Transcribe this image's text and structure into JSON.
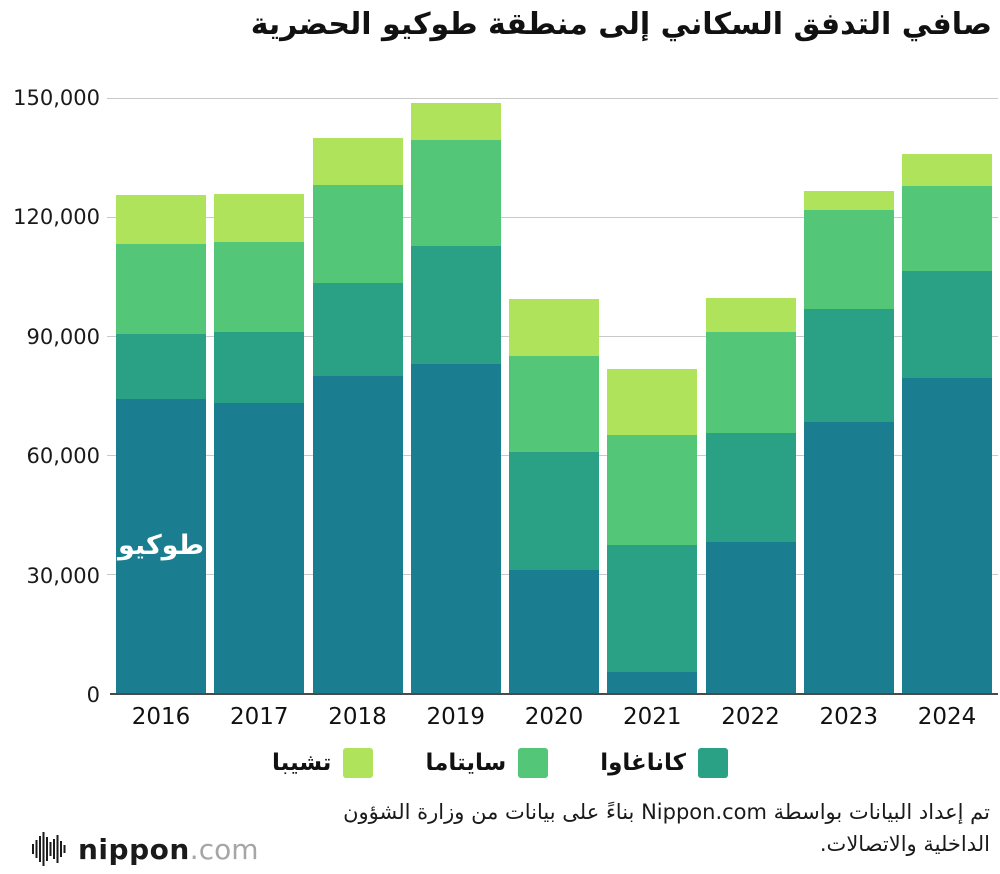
{
  "title": "صافي التدفق السكاني إلى منطقة طوكيو الحضرية",
  "colors": {
    "tokyo": "#1b7e90",
    "kanagawa": "#2aa184",
    "saitama": "#53c677",
    "chiba": "#b0e35c",
    "grid": "#c9c9c9",
    "axis": "#4a4a4a"
  },
  "chart_data": {
    "type": "bar",
    "stacked": true,
    "title": "صافي التدفق السكاني إلى منطقة طوكيو الحضرية",
    "categories": [
      "2016",
      "2017",
      "2018",
      "2019",
      "2020",
      "2021",
      "2022",
      "2023",
      "2024"
    ],
    "series": [
      {
        "name": "طوكيو",
        "color_key": "tokyo",
        "values": [
          74200,
          73100,
          79800,
          83000,
          31100,
          5400,
          38000,
          68300,
          79300
        ]
      },
      {
        "name": "كاناغاوا",
        "color_key": "kanagawa",
        "values": [
          16300,
          17900,
          23500,
          29600,
          29600,
          31800,
          27600,
          28600,
          27000
        ]
      },
      {
        "name": "سايتاما",
        "color_key": "saitama",
        "values": [
          22600,
          22800,
          24700,
          26700,
          24300,
          27800,
          25400,
          24800,
          21500
        ]
      },
      {
        "name": "تشيبا",
        "color_key": "chiba",
        "values": [
          12500,
          12000,
          11900,
          9500,
          14300,
          16600,
          8600,
          4800,
          8200
        ]
      }
    ],
    "ylim": [
      0,
      150000
    ],
    "ytick_step": 30000,
    "yticks_labels": [
      "0",
      "30,000",
      "60,000",
      "90,000",
      "120,000",
      "150,000"
    ],
    "grid": true,
    "legend_position": "bottom",
    "bar_label": {
      "series": "طوكيو",
      "category": "2016",
      "text": "طوكيو"
    },
    "legend": [
      {
        "label": "كاناغاوا",
        "color_key": "kanagawa"
      },
      {
        "label": "سايتاما",
        "color_key": "saitama"
      },
      {
        "label": "تشيبا",
        "color_key": "chiba"
      }
    ]
  },
  "source": {
    "line1": "تم إعداد البيانات بواسطة Nippon.com بناءً على بيانات من وزارة الشؤون",
    "line2": "الداخلية والاتصالات."
  },
  "logo": {
    "name": "nippon",
    "tld": ".com"
  }
}
